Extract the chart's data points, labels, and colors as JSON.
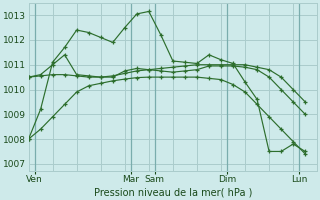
{
  "background_color": "#ceeaea",
  "grid_color": "#aacccc",
  "line_color": "#2d6e2d",
  "title": "Pression niveau de la mer( hPa )",
  "ylabel_values": [
    1007,
    1008,
    1009,
    1010,
    1011,
    1012,
    1013
  ],
  "x_ticks_labels": [
    "Ven",
    "Mar",
    "Sam",
    "Dim",
    "Lun"
  ],
  "x_ticks_pos": [
    0.5,
    8.5,
    10.5,
    16.5,
    22.5
  ],
  "xlim": [
    0,
    24
  ],
  "ylim": [
    1006.7,
    1013.5
  ],
  "series": [
    [
      1008.0,
      1009.2,
      1011.1,
      1011.7,
      1012.4,
      1012.3,
      1012.1,
      1011.9,
      1012.5,
      1013.05,
      1013.15,
      1012.2,
      1011.15,
      1011.1,
      1011.05,
      1011.4,
      1011.2,
      1011.05,
      1010.3,
      1009.6,
      1007.5,
      1007.5,
      1007.8,
      1007.5
    ],
    [
      1010.5,
      1010.55,
      1010.6,
      1010.6,
      1010.55,
      1010.5,
      1010.5,
      1010.55,
      1010.65,
      1010.75,
      1010.8,
      1010.85,
      1010.9,
      1010.95,
      1011.0,
      1011.0,
      1011.0,
      1011.0,
      1011.0,
      1010.9,
      1010.8,
      1010.5,
      1010.0,
      1009.5
    ],
    [
      1010.5,
      1010.6,
      1011.0,
      1011.4,
      1010.6,
      1010.55,
      1010.5,
      1010.5,
      1010.75,
      1010.85,
      1010.8,
      1010.75,
      1010.7,
      1010.75,
      1010.8,
      1010.95,
      1010.95,
      1010.95,
      1010.9,
      1010.8,
      1010.5,
      1010.0,
      1009.5,
      1009.0
    ],
    [
      1008.0,
      1008.4,
      1008.9,
      1009.4,
      1009.9,
      1010.15,
      1010.25,
      1010.35,
      1010.42,
      1010.48,
      1010.5,
      1010.5,
      1010.5,
      1010.5,
      1010.5,
      1010.45,
      1010.4,
      1010.2,
      1009.9,
      1009.4,
      1008.9,
      1008.4,
      1007.9,
      1007.4
    ]
  ],
  "x_values": [
    0,
    1,
    2,
    3,
    4,
    5,
    6,
    7,
    8,
    9,
    10,
    11,
    12,
    13,
    14,
    15,
    16,
    17,
    18,
    19,
    20,
    21,
    22,
    23
  ]
}
